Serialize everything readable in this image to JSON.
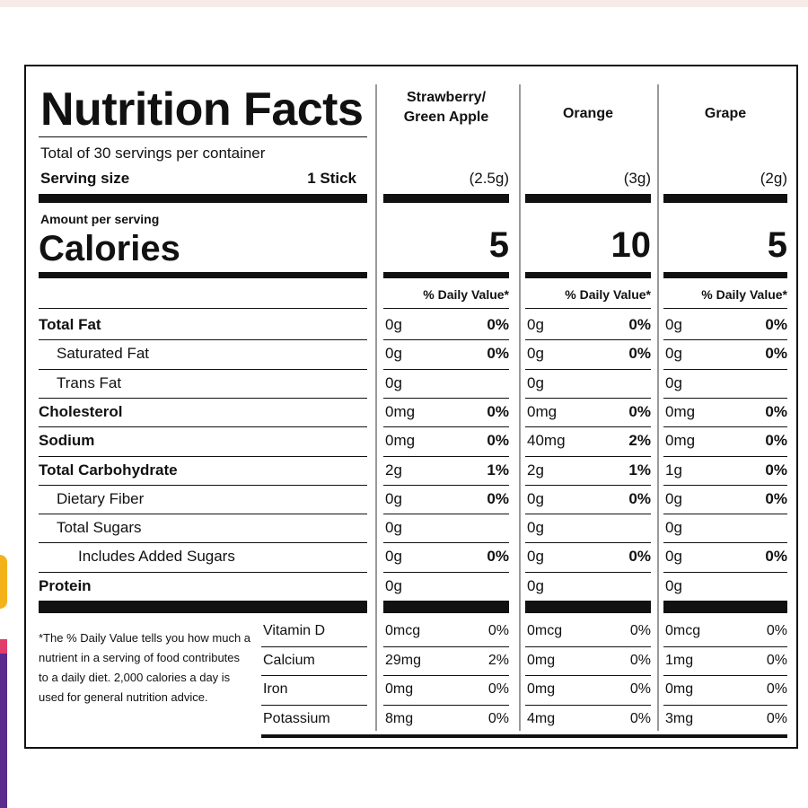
{
  "label": {
    "title": "Nutrition Facts",
    "servings_text": "Total of 30 servings per container",
    "serving_size_label": "Serving size",
    "serving_size_value": "1 Stick",
    "amount_per_serving": "Amount per serving",
    "calories_label": "Calories",
    "daily_value_header": "% Daily Value*",
    "footnote": "*The % Daily Value tells you how much a nutrient in a serving of food contributes to a daily diet. 2,000 calories a day is used for general nutrition advice."
  },
  "flavors": [
    {
      "name_line1": "Strawberry/",
      "name_line2": "Green Apple",
      "serving": "(2.5g)",
      "calories": "5"
    },
    {
      "name_line1": "Orange",
      "name_line2": "",
      "serving": "(3g)",
      "calories": "10"
    },
    {
      "name_line1": "Grape",
      "name_line2": "",
      "serving": "(2g)",
      "calories": "5"
    }
  ],
  "nutrients": [
    {
      "name": "Total Fat",
      "bold": true,
      "indent": 0,
      "values": [
        [
          "0g",
          "0%"
        ],
        [
          "0g",
          "0%"
        ],
        [
          "0g",
          "0%"
        ]
      ]
    },
    {
      "name": "Saturated Fat",
      "bold": false,
      "indent": 1,
      "values": [
        [
          "0g",
          "0%"
        ],
        [
          "0g",
          "0%"
        ],
        [
          "0g",
          "0%"
        ]
      ]
    },
    {
      "name": "Trans Fat",
      "bold": false,
      "indent": 1,
      "values": [
        [
          "0g",
          ""
        ],
        [
          "0g",
          ""
        ],
        [
          "0g",
          ""
        ]
      ]
    },
    {
      "name": "Cholesterol",
      "bold": true,
      "indent": 0,
      "values": [
        [
          "0mg",
          "0%"
        ],
        [
          "0mg",
          "0%"
        ],
        [
          "0mg",
          "0%"
        ]
      ]
    },
    {
      "name": "Sodium",
      "bold": true,
      "indent": 0,
      "values": [
        [
          "0mg",
          "0%"
        ],
        [
          "40mg",
          "2%"
        ],
        [
          "0mg",
          "0%"
        ]
      ]
    },
    {
      "name": "Total Carbohydrate",
      "bold": true,
      "indent": 0,
      "values": [
        [
          "2g",
          "1%"
        ],
        [
          "2g",
          "1%"
        ],
        [
          "1g",
          "0%"
        ]
      ]
    },
    {
      "name": "Dietary Fiber",
      "bold": false,
      "indent": 1,
      "values": [
        [
          "0g",
          "0%"
        ],
        [
          "0g",
          "0%"
        ],
        [
          "0g",
          "0%"
        ]
      ]
    },
    {
      "name": "Total Sugars",
      "bold": false,
      "indent": 1,
      "values": [
        [
          "0g",
          ""
        ],
        [
          "0g",
          ""
        ],
        [
          "0g",
          ""
        ]
      ]
    },
    {
      "name": "Includes Added Sugars",
      "bold": false,
      "indent": 2,
      "values": [
        [
          "0g",
          "0%"
        ],
        [
          "0g",
          "0%"
        ],
        [
          "0g",
          "0%"
        ]
      ]
    },
    {
      "name": "Protein",
      "bold": true,
      "indent": 0,
      "values": [
        [
          "0g",
          ""
        ],
        [
          "0g",
          ""
        ],
        [
          "0g",
          ""
        ]
      ]
    }
  ],
  "vitamins": [
    {
      "name": "Vitamin D",
      "values": [
        [
          "0mcg",
          "0%"
        ],
        [
          "0mcg",
          "0%"
        ],
        [
          "0mcg",
          "0%"
        ]
      ]
    },
    {
      "name": "Calcium",
      "values": [
        [
          "29mg",
          "2%"
        ],
        [
          "0mg",
          "0%"
        ],
        [
          "1mg",
          "0%"
        ]
      ]
    },
    {
      "name": "Iron",
      "values": [
        [
          "0mg",
          "0%"
        ],
        [
          "0mg",
          "0%"
        ],
        [
          "0mg",
          "0%"
        ]
      ]
    },
    {
      "name": "Potassium",
      "values": [
        [
          "8mg",
          "0%"
        ],
        [
          "4mg",
          "0%"
        ],
        [
          "3mg",
          "0%"
        ]
      ]
    }
  ]
}
